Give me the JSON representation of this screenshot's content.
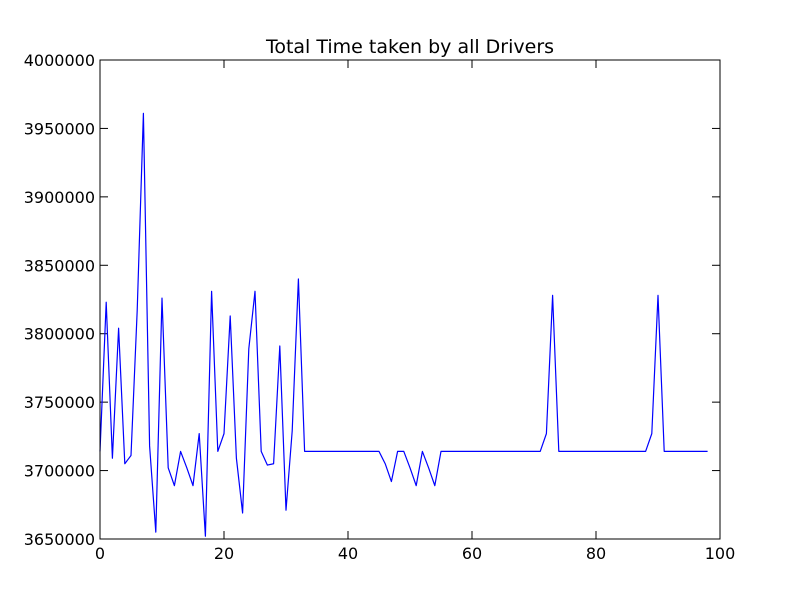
{
  "chart_data": {
    "type": "line",
    "title": "Total Time taken by all Drivers",
    "xlabel": "",
    "ylabel": "",
    "xlim": [
      0,
      100
    ],
    "ylim": [
      3650000,
      4000000
    ],
    "xticks": [
      0,
      20,
      40,
      60,
      80,
      100
    ],
    "yticks": [
      3650000,
      3700000,
      3750000,
      3800000,
      3850000,
      3900000,
      3950000,
      4000000
    ],
    "xtick_labels": [
      "0",
      "20",
      "40",
      "60",
      "80",
      "100"
    ],
    "ytick_labels": [
      "3650000",
      "3700000",
      "3750000",
      "3800000",
      "3850000",
      "3900000",
      "3950000",
      "4000000"
    ],
    "grid": false,
    "line_color": "#0000ff",
    "series": [
      {
        "x": [
          0,
          1,
          2,
          3,
          4,
          5,
          6,
          7,
          8,
          9,
          10,
          11,
          12,
          13,
          14,
          15,
          16,
          17,
          18,
          19,
          20,
          21,
          22,
          23,
          24,
          25,
          26,
          27,
          28,
          29,
          30,
          31,
          32,
          33,
          34,
          35,
          36,
          37,
          38,
          39,
          40,
          41,
          42,
          43,
          44,
          45,
          46,
          47,
          48,
          49,
          50,
          51,
          52,
          53,
          54,
          55,
          56,
          57,
          58,
          59,
          60,
          61,
          62,
          63,
          64,
          65,
          66,
          67,
          68,
          69,
          70,
          71,
          72,
          73,
          74,
          75,
          76,
          77,
          78,
          79,
          80,
          81,
          82,
          83,
          84,
          85,
          86,
          87,
          88,
          89,
          90,
          91,
          92,
          93,
          94,
          95,
          96,
          97,
          98
        ],
        "values": [
          3714000,
          3823000,
          3709000,
          3804000,
          3705000,
          3711000,
          3817000,
          3961000,
          3718000,
          3655000,
          3826000,
          3702000,
          3689000,
          3714000,
          3702000,
          3689000,
          3727000,
          3652000,
          3831000,
          3714000,
          3727000,
          3813000,
          3709000,
          3669000,
          3789000,
          3831000,
          3714000,
          3704000,
          3705000,
          3791000,
          3671000,
          3729000,
          3840000,
          3714000,
          3714000,
          3714000,
          3714000,
          3714000,
          3714000,
          3714000,
          3714000,
          3714000,
          3714000,
          3714000,
          3714000,
          3714000,
          3705000,
          3692000,
          3714000,
          3714000,
          3702000,
          3689000,
          3714000,
          3702000,
          3689000,
          3714000,
          3714000,
          3714000,
          3714000,
          3714000,
          3714000,
          3714000,
          3714000,
          3714000,
          3714000,
          3714000,
          3714000,
          3714000,
          3714000,
          3714000,
          3714000,
          3714000,
          3727000,
          3828000,
          3714000,
          3714000,
          3714000,
          3714000,
          3714000,
          3714000,
          3714000,
          3714000,
          3714000,
          3714000,
          3714000,
          3714000,
          3714000,
          3714000,
          3714000,
          3727000,
          3828000,
          3714000,
          3714000,
          3714000,
          3714000,
          3714000,
          3714000,
          3714000,
          3714000
        ]
      }
    ]
  }
}
